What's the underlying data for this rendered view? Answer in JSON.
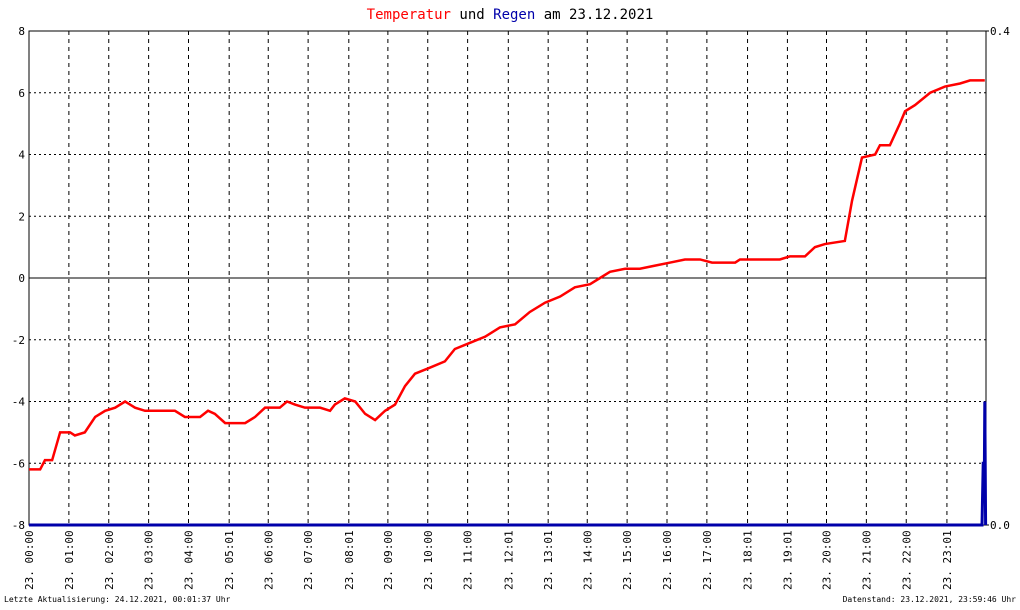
{
  "chart_data": {
    "type": "line",
    "title_joiner": "und",
    "title_date": "am 23.12.2021",
    "footer_left": "Letzte Aktualisierung: 24.12.2021, 00:01:37 Uhr",
    "footer_right": "Datenstand: 23.12.2021, 23:59:46 Uhr",
    "grid": true,
    "xlim": [
      0,
      24
    ],
    "xticks": [
      {
        "value": 0,
        "label": "23. 00:00"
      },
      {
        "value": 1,
        "label": "23. 01:00"
      },
      {
        "value": 2,
        "label": "23. 02:00"
      },
      {
        "value": 3,
        "label": "23. 03:00"
      },
      {
        "value": 4,
        "label": "23. 04:00"
      },
      {
        "value": 5.02,
        "label": "23. 05:01"
      },
      {
        "value": 6,
        "label": "23. 06:00"
      },
      {
        "value": 7,
        "label": "23. 07:00"
      },
      {
        "value": 8.02,
        "label": "23. 08:01"
      },
      {
        "value": 9,
        "label": "23. 09:00"
      },
      {
        "value": 10,
        "label": "23. 10:00"
      },
      {
        "value": 11,
        "label": "23. 11:00"
      },
      {
        "value": 12.02,
        "label": "23. 12:01"
      },
      {
        "value": 13.02,
        "label": "23. 13:01"
      },
      {
        "value": 14,
        "label": "23. 14:00"
      },
      {
        "value": 15,
        "label": "23. 15:00"
      },
      {
        "value": 16,
        "label": "23. 16:00"
      },
      {
        "value": 17,
        "label": "23. 17:00"
      },
      {
        "value": 18.02,
        "label": "23. 18:01"
      },
      {
        "value": 19.02,
        "label": "23. 19:01"
      },
      {
        "value": 20,
        "label": "23. 20:00"
      },
      {
        "value": 21,
        "label": "23. 21:00"
      },
      {
        "value": 22,
        "label": "23. 22:00"
      },
      {
        "value": 23.02,
        "label": "23. 23:01"
      }
    ],
    "ylim": [
      -8,
      8
    ],
    "yticks": [
      -8,
      -6,
      -4,
      -2,
      0,
      2,
      4,
      6,
      8
    ],
    "y2lim": [
      0,
      0.4
    ],
    "y2ticks": [
      {
        "value": 0,
        "label": "0.0"
      },
      0.4
    ],
    "series": [
      {
        "name": "Temperatur",
        "color": "#ff0000",
        "x": [
          0,
          0.28,
          0.4,
          0.58,
          0.78,
          1.03,
          1.15,
          1.4,
          1.66,
          1.91,
          2.16,
          2.41,
          2.66,
          2.91,
          3.66,
          3.91,
          4.29,
          4.49,
          4.66,
          4.92,
          5.42,
          5.67,
          5.92,
          6.29,
          6.47,
          6.67,
          6.92,
          7.3,
          7.55,
          7.67,
          7.92,
          8.18,
          8.43,
          8.68,
          8.93,
          9.18,
          9.43,
          9.68,
          10.06,
          10.43,
          10.68,
          11.06,
          11.44,
          11.81,
          12.19,
          12.56,
          12.94,
          13.32,
          13.69,
          14.07,
          14.32,
          14.57,
          14.95,
          15.32,
          15.7,
          16.08,
          16.45,
          16.83,
          17.13,
          17.71,
          17.83,
          18.83,
          19.08,
          19.46,
          19.71,
          19.96,
          20.46,
          20.64,
          20.89,
          21.22,
          21.34,
          21.59,
          21.84,
          21.97,
          22.22,
          22.6,
          22.97,
          23.35,
          23.6,
          23.97
        ],
        "values": [
          -6.2,
          -6.2,
          -5.9,
          -5.9,
          -5.0,
          -5.0,
          -5.1,
          -5.0,
          -4.5,
          -4.3,
          -4.2,
          -4.0,
          -4.2,
          -4.3,
          -4.3,
          -4.5,
          -4.5,
          -4.3,
          -4.4,
          -4.7,
          -4.7,
          -4.5,
          -4.2,
          -4.2,
          -4.0,
          -4.1,
          -4.2,
          -4.2,
          -4.3,
          -4.1,
          -3.9,
          -4.0,
          -4.4,
          -4.6,
          -4.3,
          -4.1,
          -3.5,
          -3.1,
          -2.9,
          -2.7,
          -2.3,
          -2.1,
          -1.9,
          -1.6,
          -1.5,
          -1.1,
          -0.8,
          -0.6,
          -0.3,
          -0.2,
          0.0,
          0.2,
          0.3,
          0.3,
          0.4,
          0.5,
          0.6,
          0.6,
          0.5,
          0.5,
          0.6,
          0.6,
          0.7,
          0.7,
          1.0,
          1.1,
          1.2,
          2.5,
          3.9,
          4.0,
          4.3,
          4.3,
          5.0,
          5.4,
          5.6,
          6.0,
          6.2,
          6.3,
          6.4,
          6.4
        ]
      },
      {
        "name": "Regen",
        "color": "#0000aa",
        "axis": "y2",
        "x": [
          0,
          23.9,
          23.93,
          23.96,
          23.97,
          23.99
        ],
        "values": [
          0,
          0,
          0.05,
          0.05,
          0.1,
          0
        ]
      }
    ]
  }
}
